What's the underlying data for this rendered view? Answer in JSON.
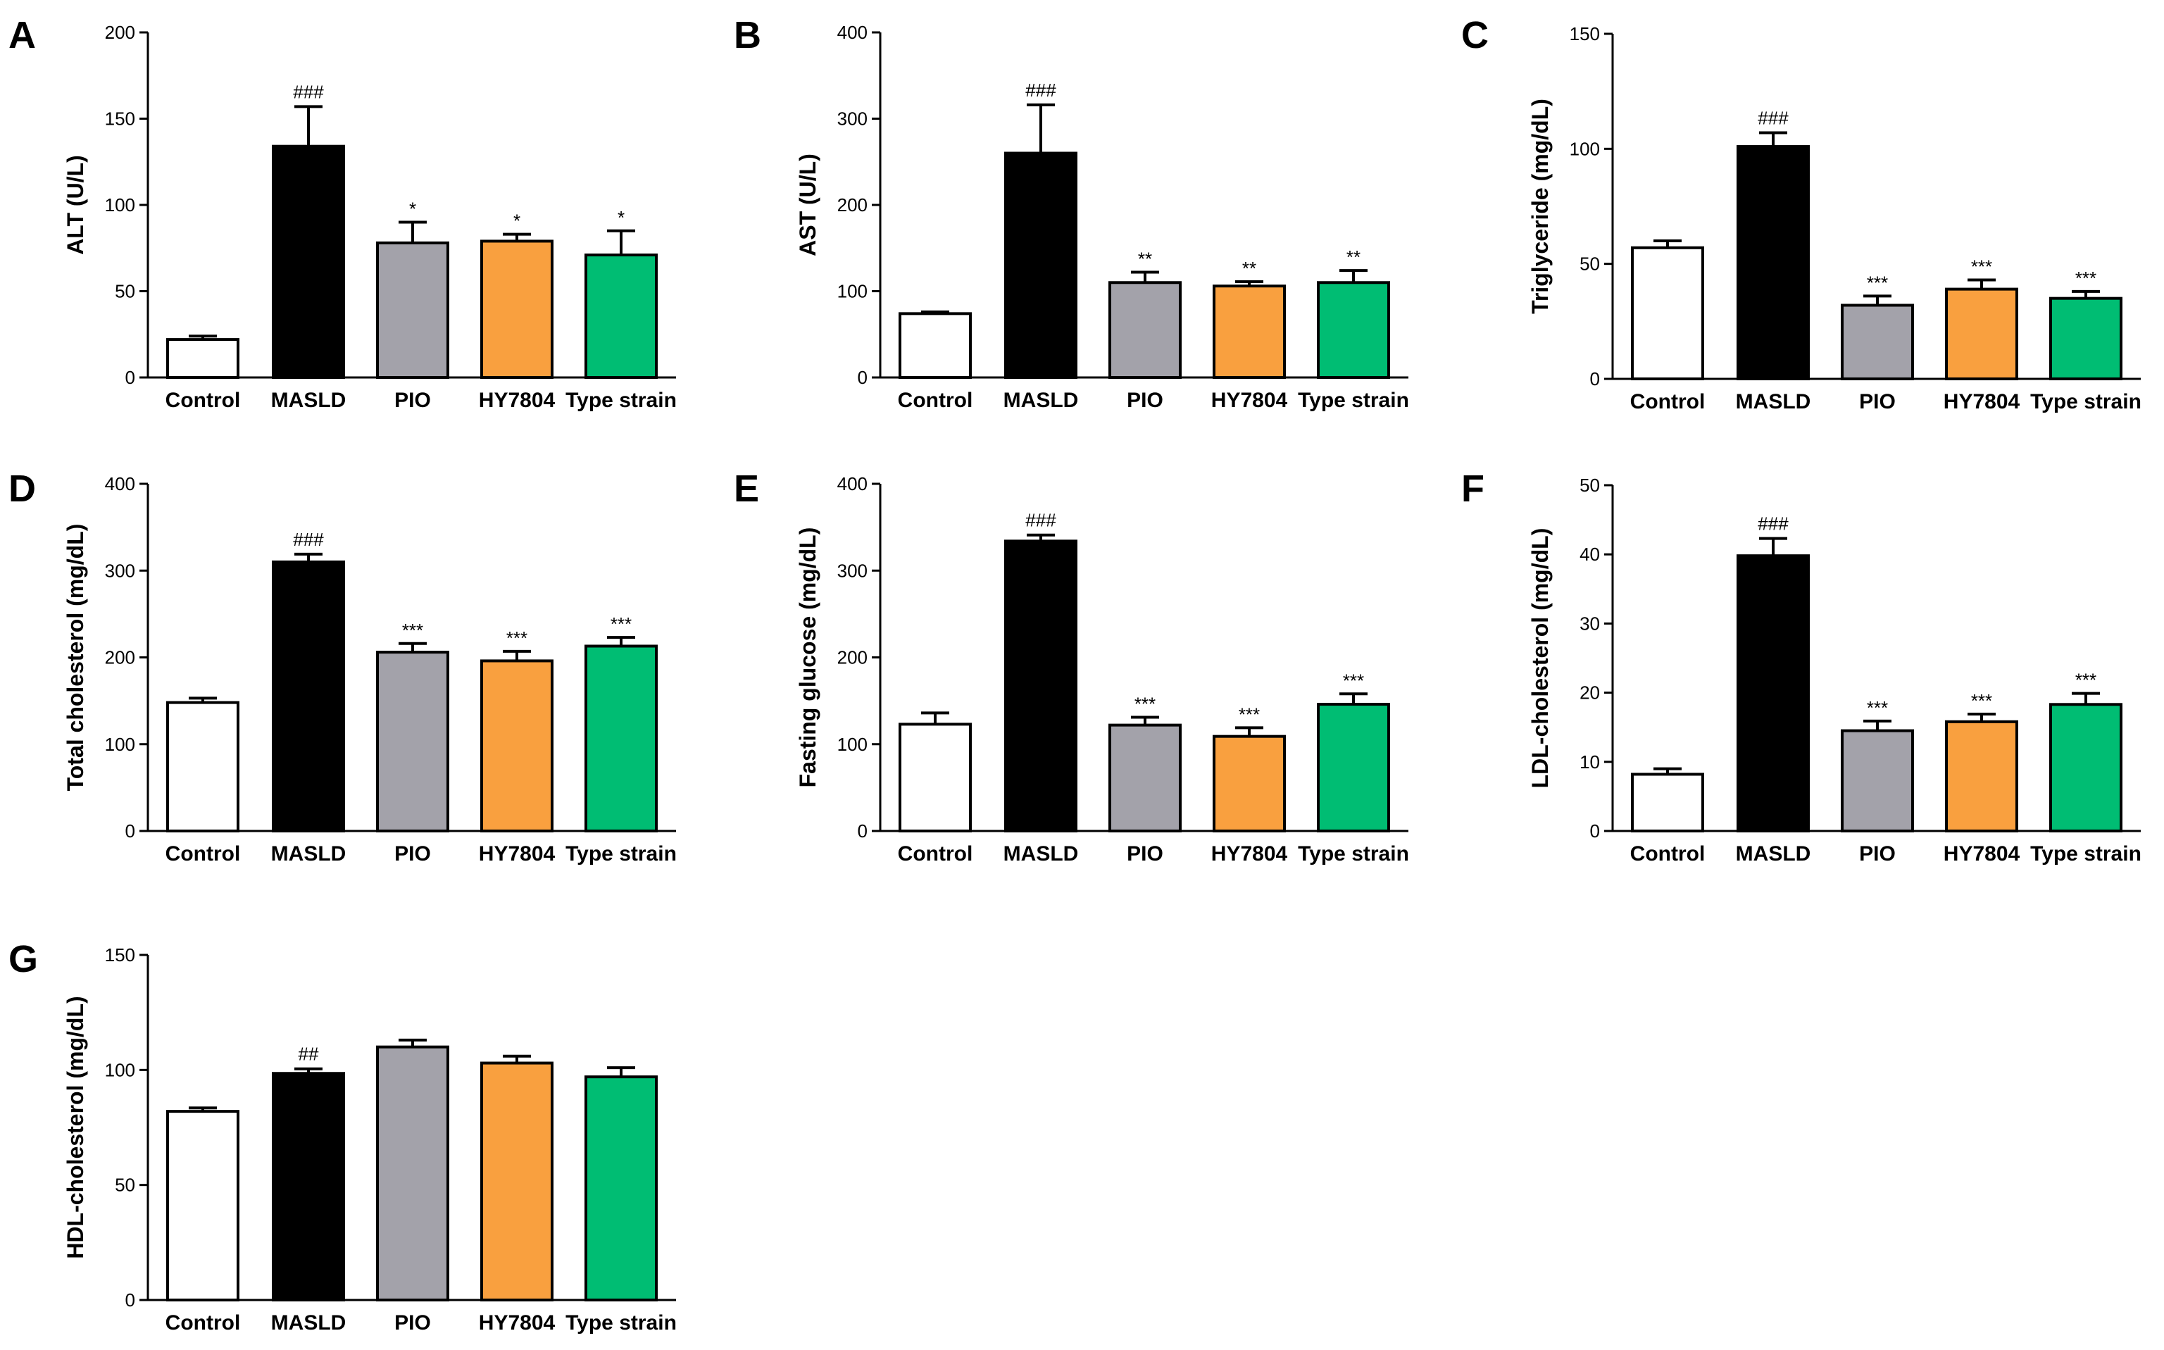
{
  "figure": {
    "categories": [
      "Control",
      "MASLD",
      "PIO",
      "HY7804",
      "Type strain"
    ],
    "colors": {
      "Control": "#ffffff",
      "MASLD": "#000000",
      "PIO": "#a3a2aa",
      "HY7804": "#f9a03f",
      "Type strain": "#00bd73"
    }
  },
  "chart_data": [
    {
      "panel": "A",
      "type": "bar",
      "title": "",
      "categories": [
        "Control",
        "MASLD",
        "PIO",
        "HY7804",
        "Type strain"
      ],
      "ylabel": "ALT (U/L)",
      "xlabel": "",
      "ylim": [
        0,
        200
      ],
      "yticks": [
        0,
        50,
        100,
        150,
        200
      ],
      "values": [
        22,
        134,
        78,
        79,
        71
      ],
      "errors": [
        2,
        23,
        12,
        4,
        14
      ],
      "annotations": [
        "",
        "###",
        "*",
        "*",
        "*"
      ]
    },
    {
      "panel": "B",
      "type": "bar",
      "title": "",
      "categories": [
        "Control",
        "MASLD",
        "PIO",
        "HY7804",
        "Type strain"
      ],
      "ylabel": "AST (U/L)",
      "xlabel": "",
      "ylim": [
        0,
        400
      ],
      "yticks": [
        0,
        100,
        200,
        300,
        400
      ],
      "values": [
        74,
        260,
        110,
        106,
        110
      ],
      "errors": [
        2,
        56,
        12,
        5,
        14
      ],
      "annotations": [
        "",
        "###",
        "**",
        "**",
        "**"
      ]
    },
    {
      "panel": "C",
      "type": "bar",
      "title": "",
      "categories": [
        "Control",
        "MASLD",
        "PIO",
        "HY7804",
        "Type strain"
      ],
      "ylabel": "Triglyceride (mg/dL)",
      "xlabel": "",
      "ylim": [
        0,
        150
      ],
      "yticks": [
        0,
        50,
        100,
        150
      ],
      "values": [
        57,
        101,
        32,
        39,
        35
      ],
      "errors": [
        3,
        6,
        4,
        4,
        3
      ],
      "annotations": [
        "",
        "###",
        "***",
        "***",
        "***"
      ]
    },
    {
      "panel": "D",
      "type": "bar",
      "title": "",
      "categories": [
        "Control",
        "MASLD",
        "PIO",
        "HY7804",
        "Type strain"
      ],
      "ylabel": "Total cholesterol (mg/dL)",
      "xlabel": "",
      "ylim": [
        0,
        400
      ],
      "yticks": [
        0,
        100,
        200,
        300,
        400
      ],
      "values": [
        148,
        310,
        206,
        196,
        213
      ],
      "errors": [
        5,
        9,
        10,
        11,
        10
      ],
      "annotations": [
        "",
        "###",
        "***",
        "***",
        "***"
      ]
    },
    {
      "panel": "E",
      "type": "bar",
      "title": "",
      "categories": [
        "Control",
        "MASLD",
        "PIO",
        "HY7804",
        "Type strain"
      ],
      "ylabel": "Fasting glucose (mg/dL)",
      "xlabel": "",
      "ylim": [
        0,
        400
      ],
      "yticks": [
        0,
        100,
        200,
        300,
        400
      ],
      "values": [
        123,
        334,
        122,
        109,
        146
      ],
      "errors": [
        13,
        7,
        9,
        10,
        12
      ],
      "annotations": [
        "",
        "###",
        "***",
        "***",
        "***"
      ]
    },
    {
      "panel": "F",
      "type": "bar",
      "title": "",
      "categories": [
        "Control",
        "MASLD",
        "PIO",
        "HY7804",
        "Type strain"
      ],
      "ylabel": "LDL-cholesterol (mg/dL)",
      "xlabel": "",
      "ylim": [
        0,
        50
      ],
      "yticks": [
        0,
        10,
        20,
        30,
        40,
        50
      ],
      "values": [
        8.2,
        39.8,
        14.5,
        15.8,
        18.3
      ],
      "errors": [
        0.8,
        2.5,
        1.4,
        1.1,
        1.6
      ],
      "annotations": [
        "",
        "###",
        "***",
        "***",
        "***"
      ]
    },
    {
      "panel": "G",
      "type": "bar",
      "title": "",
      "categories": [
        "Control",
        "MASLD",
        "PIO",
        "HY7804",
        "Type strain"
      ],
      "ylabel": "HDL-cholesterol (mg/dL)",
      "xlabel": "",
      "ylim": [
        0,
        150
      ],
      "yticks": [
        0,
        50,
        100,
        150
      ],
      "values": [
        82,
        98.5,
        110,
        103,
        97
      ],
      "errors": [
        1.5,
        2,
        3,
        3,
        4
      ],
      "annotations": [
        "",
        "##",
        "",
        "",
        ""
      ]
    }
  ]
}
